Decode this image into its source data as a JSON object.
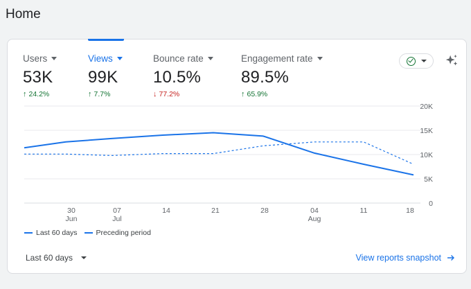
{
  "page": {
    "title": "Home"
  },
  "metrics": [
    {
      "label": "Users",
      "value": "53K",
      "delta": "24.2%",
      "direction": "up"
    },
    {
      "label": "Views",
      "value": "99K",
      "delta": "7.7%",
      "direction": "up"
    },
    {
      "label": "Bounce rate",
      "value": "10.5%",
      "delta": "77.2%",
      "direction": "down"
    },
    {
      "label": "Engagement rate",
      "value": "89.5%",
      "delta": "65.9%",
      "direction": "up"
    }
  ],
  "active_metric": "Views",
  "icons": {
    "status": "check-circle-icon",
    "insights": "sparkle-icon"
  },
  "colors": {
    "accent": "#1a73e8",
    "positive": "#137333",
    "negative": "#c5221f"
  },
  "chart_data": {
    "type": "line",
    "x_ticks": [
      {
        "day": "30",
        "month": "Jun"
      },
      {
        "day": "07",
        "month": "Jul"
      },
      {
        "day": "14",
        "month": ""
      },
      {
        "day": "21",
        "month": ""
      },
      {
        "day": "28",
        "month": ""
      },
      {
        "day": "04",
        "month": "Aug"
      },
      {
        "day": "11",
        "month": ""
      },
      {
        "day": "18",
        "month": ""
      }
    ],
    "y_ticks": [
      "0",
      "5K",
      "10K",
      "15K",
      "20K"
    ],
    "ylim": [
      0,
      20000
    ],
    "y_axis_position": "right",
    "grid": true,
    "series": [
      {
        "name": "Last 60 days",
        "style": "solid",
        "values": [
          11400,
          12600,
          13300,
          14000,
          14500,
          13800,
          10300,
          8000,
          5800
        ]
      },
      {
        "name": "Preceding period",
        "style": "dashed",
        "values": [
          10100,
          10100,
          9800,
          10200,
          10200,
          11800,
          12600,
          12600,
          8000
        ]
      }
    ],
    "legend_position": "bottom-left"
  },
  "footer": {
    "range_label": "Last 60 days",
    "snapshot_link": "View reports snapshot"
  }
}
